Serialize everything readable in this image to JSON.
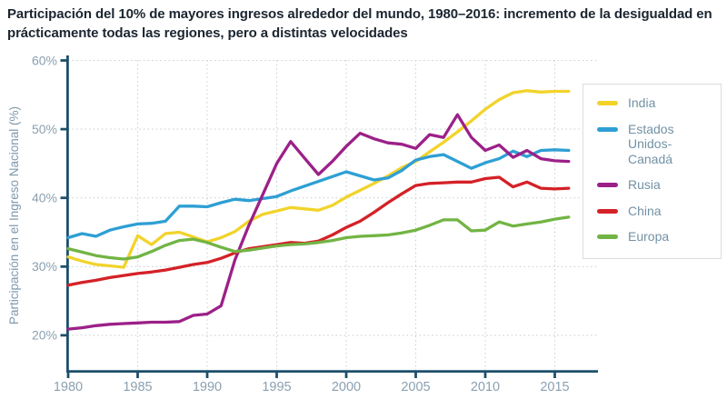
{
  "title": "Participación del 10% de mayores ingresos alrededor del mundo, 1980–2016: incremento de la desigualdad en prácticamente todas las regiones, pero a distintas velocidades",
  "colors": {
    "background": "#ffffff",
    "axis": "#1d4f6b",
    "grid": "#ccd2d6",
    "tick_label": "#8ba0b1",
    "axis_title": "#7e99ab",
    "title_text": "#1b2530",
    "legend_text": "#7391a5",
    "legend_border": "#d9dee2"
  },
  "chart_data": {
    "type": "line",
    "title": "Participación del 10% de mayores ingresos alrededor del mundo, 1980–2016: incremento de la desigualdad en prácticamente todas las regiones, pero a distintas velocidades",
    "xlabel": "",
    "ylabel": "Participación en el Ingreso Nacional (%)",
    "grid": "dotted",
    "legend_position": "right",
    "xlim": [
      1980,
      2018
    ],
    "ylim": [
      15,
      60
    ],
    "y_ticks": [
      {
        "value": 20,
        "label": "20%"
      },
      {
        "value": 30,
        "label": "30%"
      },
      {
        "value": 40,
        "label": "40%"
      },
      {
        "value": 50,
        "label": "50%"
      },
      {
        "value": 60,
        "label": "60%"
      }
    ],
    "x_ticks": [
      {
        "value": 1980,
        "label": "1980"
      },
      {
        "value": 1985,
        "label": "1985"
      },
      {
        "value": 1990,
        "label": "1990"
      },
      {
        "value": 1995,
        "label": "1995"
      },
      {
        "value": 2000,
        "label": "2000"
      },
      {
        "value": 2005,
        "label": "2005"
      },
      {
        "value": 2010,
        "label": "2010"
      },
      {
        "value": 2015,
        "label": "2015"
      }
    ],
    "x": [
      1980,
      1981,
      1982,
      1983,
      1984,
      1985,
      1986,
      1987,
      1988,
      1989,
      1990,
      1991,
      1992,
      1993,
      1994,
      1995,
      1996,
      1997,
      1998,
      1999,
      2000,
      2001,
      2002,
      2003,
      2004,
      2005,
      2006,
      2007,
      2008,
      2009,
      2010,
      2011,
      2012,
      2013,
      2014,
      2015,
      2016
    ],
    "series": [
      {
        "name": "India",
        "color": "#f2d32b",
        "values": [
          31.4,
          30.8,
          30.3,
          30.1,
          29.9,
          34.5,
          33.2,
          34.8,
          35.0,
          34.3,
          33.6,
          34.2,
          35.1,
          36.6,
          37.6,
          38.1,
          38.6,
          38.4,
          38.2,
          38.9,
          40.1,
          41.1,
          42.1,
          43.2,
          44.4,
          45.3,
          46.7,
          48.1,
          49.6,
          51.2,
          52.9,
          54.3,
          55.3,
          55.6,
          55.4,
          55.5,
          55.5
        ]
      },
      {
        "name": "Estados Unidos-Canadá",
        "color": "#2e9fd4",
        "values": [
          34.2,
          34.8,
          34.4,
          35.3,
          35.8,
          36.2,
          36.3,
          36.6,
          38.8,
          38.8,
          38.7,
          39.3,
          39.8,
          39.6,
          39.9,
          40.2,
          41.0,
          41.7,
          42.4,
          43.1,
          43.8,
          43.2,
          42.6,
          42.9,
          44.0,
          45.5,
          46.0,
          46.3,
          45.3,
          44.3,
          45.1,
          45.7,
          46.8,
          46.0,
          46.9,
          47.0,
          46.9
        ]
      },
      {
        "name": "Rusia",
        "color": "#9c2088",
        "values": [
          20.9,
          21.1,
          21.4,
          21.6,
          21.7,
          21.8,
          21.9,
          21.9,
          22.0,
          22.9,
          23.1,
          24.3,
          31.0,
          36.0,
          40.5,
          45.0,
          48.2,
          45.8,
          43.4,
          45.3,
          47.5,
          49.4,
          48.6,
          48.0,
          47.8,
          47.2,
          49.2,
          48.8,
          52.1,
          48.8,
          46.9,
          47.7,
          45.9,
          46.9,
          45.7,
          45.4,
          45.3
        ]
      },
      {
        "name": "China",
        "color": "#d42127",
        "values": [
          27.3,
          27.7,
          28.0,
          28.4,
          28.7,
          29.0,
          29.2,
          29.5,
          29.9,
          30.3,
          30.6,
          31.2,
          32.0,
          32.6,
          32.9,
          33.2,
          33.5,
          33.4,
          33.7,
          34.6,
          35.7,
          36.6,
          37.9,
          39.3,
          40.6,
          41.8,
          42.1,
          42.2,
          42.3,
          42.3,
          42.8,
          43.0,
          41.6,
          42.3,
          41.4,
          41.3,
          41.4
        ]
      },
      {
        "name": "Europa",
        "color": "#72b444",
        "values": [
          32.6,
          32.1,
          31.6,
          31.3,
          31.1,
          31.4,
          32.2,
          33.1,
          33.8,
          34.0,
          33.5,
          32.8,
          32.2,
          32.4,
          32.7,
          33.0,
          33.2,
          33.3,
          33.5,
          33.8,
          34.2,
          34.4,
          34.5,
          34.6,
          34.9,
          35.3,
          36.0,
          36.8,
          36.8,
          35.2,
          35.3,
          36.5,
          35.9,
          36.2,
          36.5,
          36.9,
          37.2
        ]
      }
    ]
  }
}
